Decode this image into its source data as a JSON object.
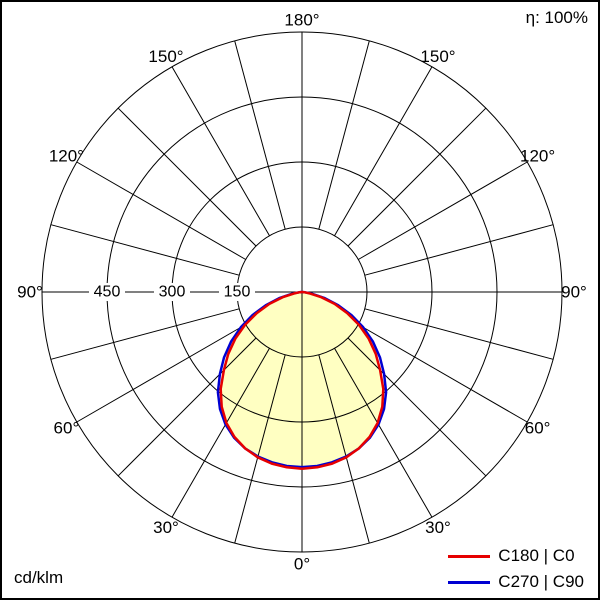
{
  "header": {
    "efficiency": "η: 100%"
  },
  "footer": {
    "unit": "cd/klm"
  },
  "chart_data": {
    "type": "polar-line",
    "unit": "cd/klm",
    "efficiency_percent": 100,
    "angle_labels": [
      "0°",
      "30°",
      "60°",
      "90°",
      "120°",
      "150°",
      "180°"
    ],
    "radial_ticks": [
      150,
      300,
      450
    ],
    "radial_max": 600,
    "spoke_step_deg": 15,
    "grid": true,
    "legend_position": "bottom-right",
    "fill_color": "#ffffc2",
    "gamma_deg": [
      0,
      5,
      10,
      15,
      20,
      25,
      30,
      35,
      40,
      45,
      50,
      55,
      60,
      65,
      70,
      75,
      80,
      85,
      90
    ],
    "series": [
      {
        "name": "C180 | C0",
        "color": "#e60000",
        "values": [
          408,
          406,
          402,
          395,
          384,
          369,
          349,
          323,
          292,
          255,
          222,
          188,
          152,
          115,
          80,
          46,
          18,
          5,
          0
        ]
      },
      {
        "name": "C270 | C90",
        "color": "#0000d2",
        "values": [
          404,
          403,
          399,
          393,
          384,
          371,
          353,
          330,
          302,
          268,
          235,
          200,
          163,
          126,
          89,
          53,
          23,
          7,
          0
        ]
      }
    ]
  }
}
